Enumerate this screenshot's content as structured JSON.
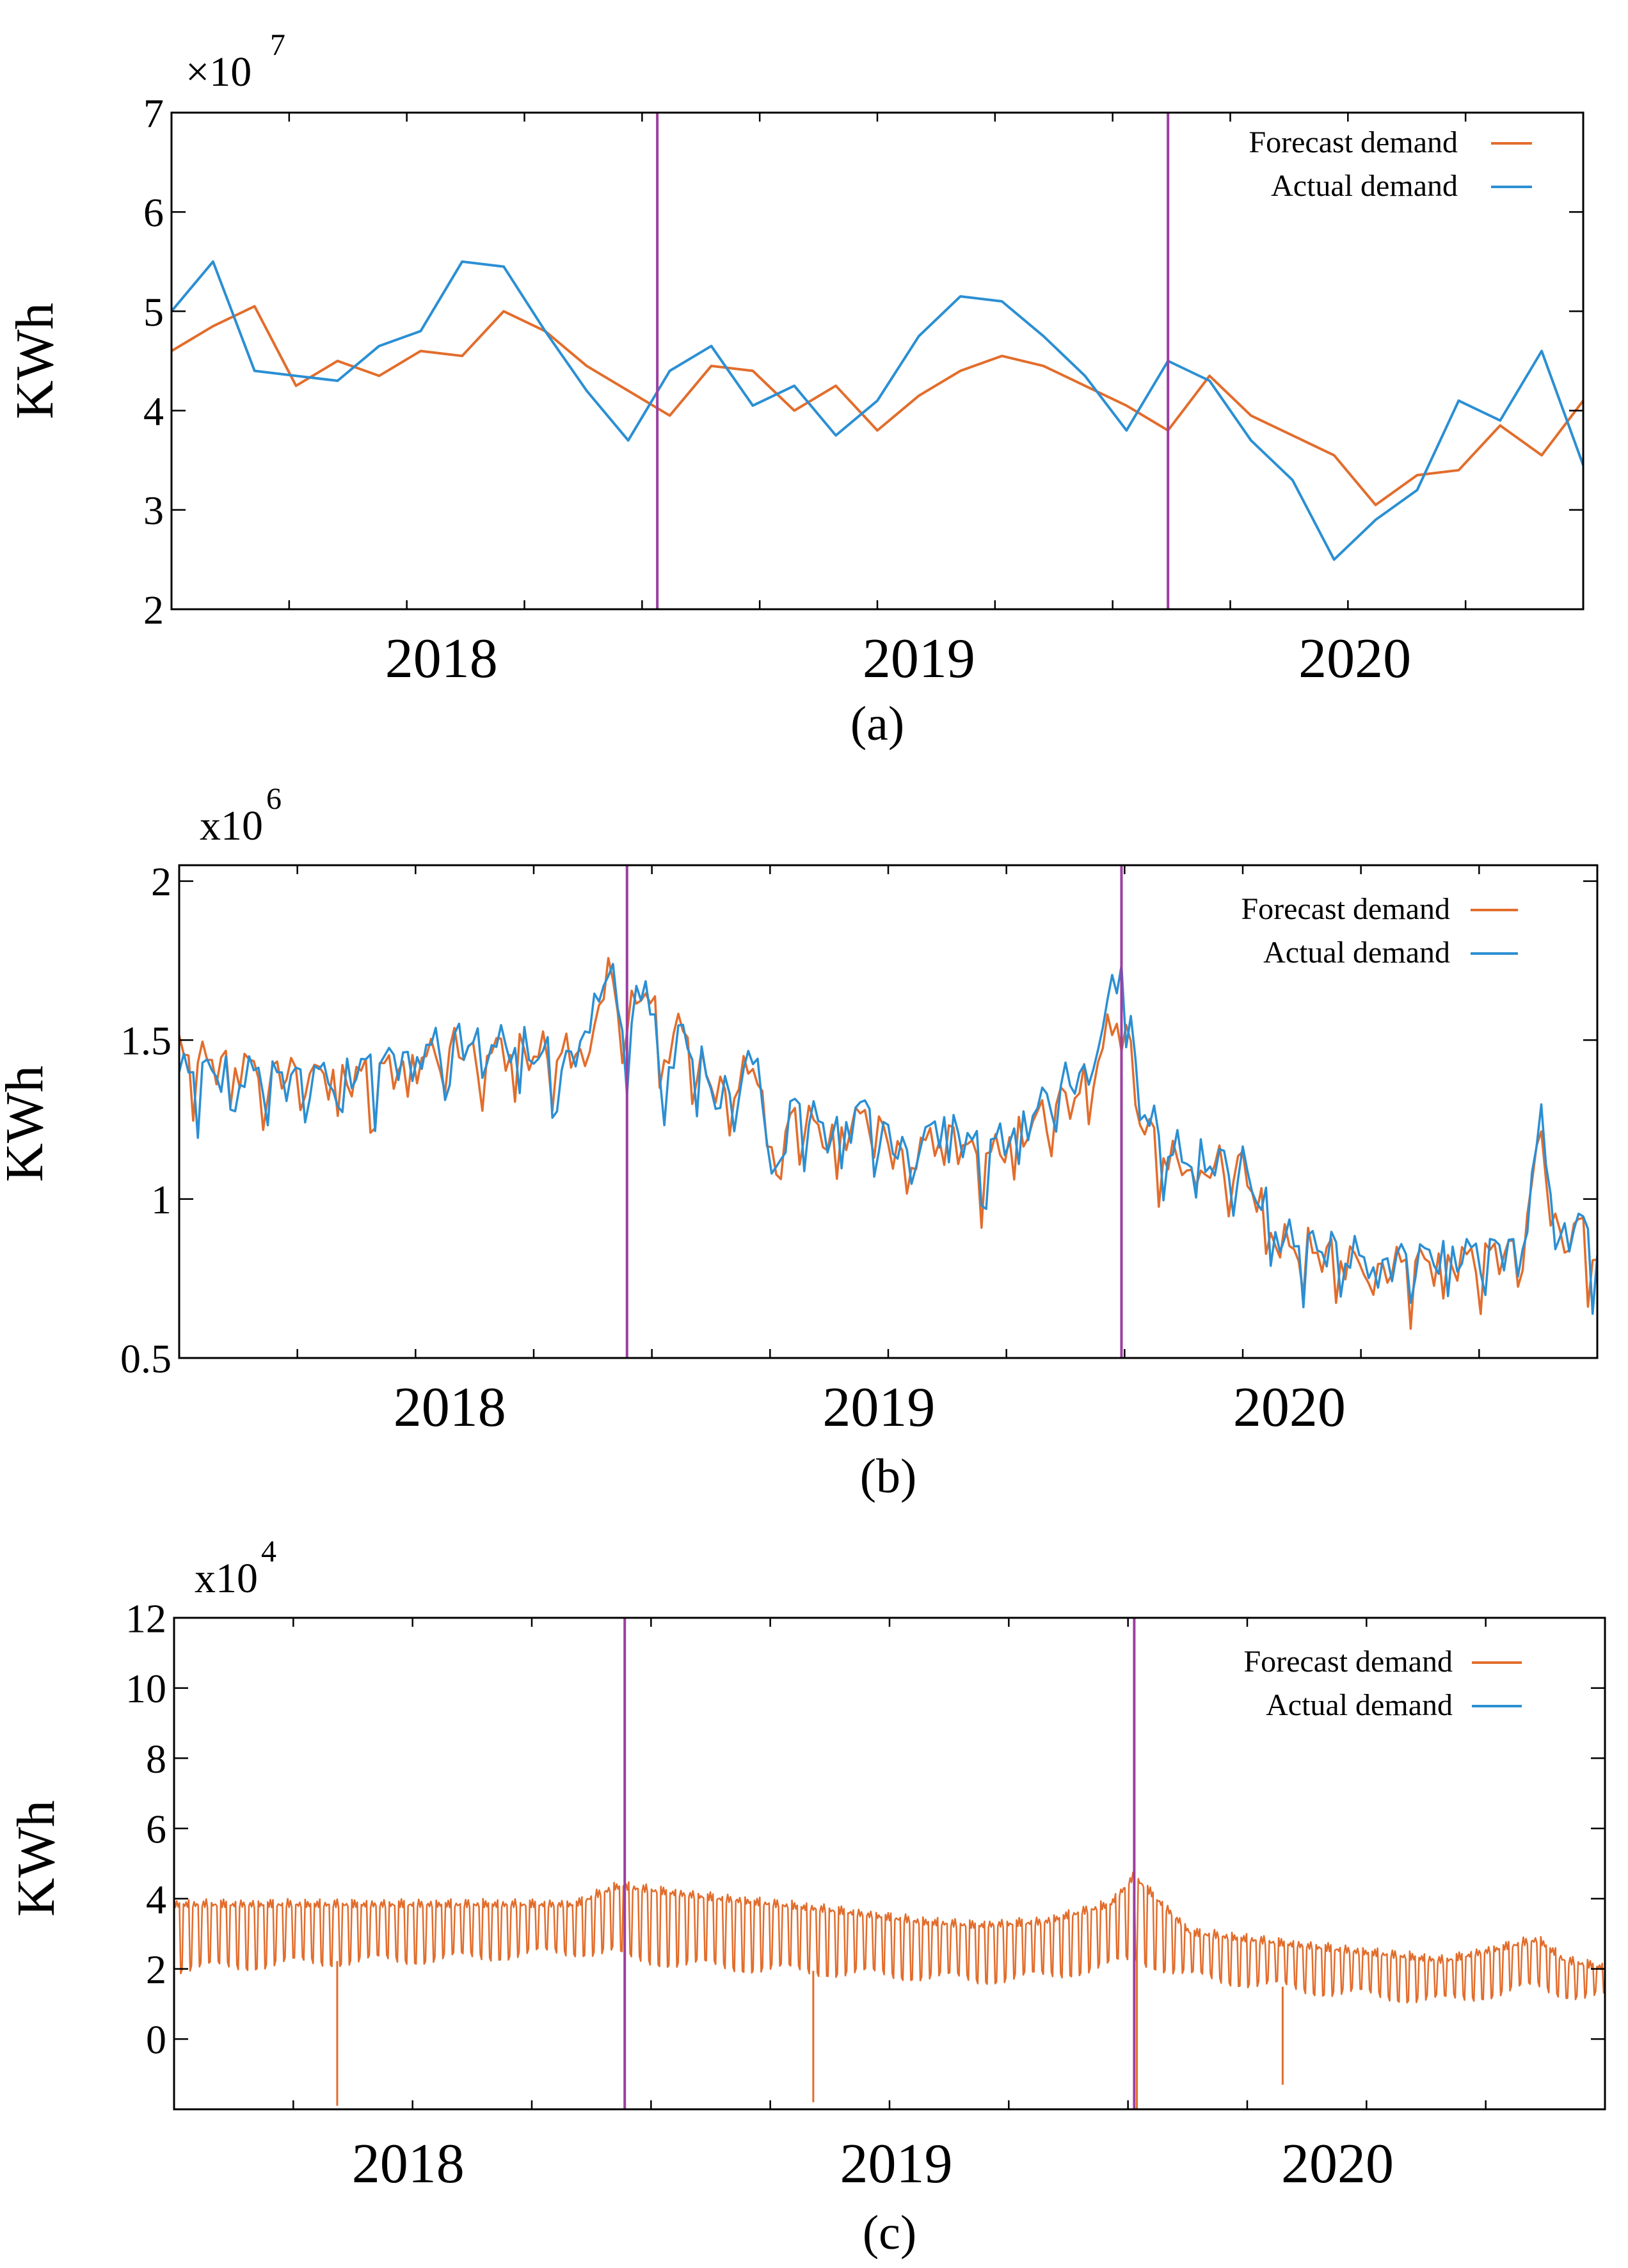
{
  "figure": {
    "panels": [
      {
        "label": "(a)"
      },
      {
        "label": "(b)"
      },
      {
        "label": "(c)"
      }
    ]
  },
  "colors": {
    "forecast": "#e26d2c",
    "actual": "#2b8fd3",
    "divider": "#9b3fa0"
  },
  "chart_data": [
    {
      "type": "line",
      "panel_label": "(a)",
      "title": "",
      "xlabel": "",
      "ylabel": "KWh",
      "y_multiplier": "×10",
      "y_multiplier_exp": "7",
      "ylim": [
        2,
        7
      ],
      "yticks": [
        2,
        3,
        4,
        5,
        6,
        7
      ],
      "ytick_labels": [
        "2",
        "3",
        "4",
        "5",
        "6",
        "7"
      ],
      "xlim": [
        0,
        34
      ],
      "x_year_labels": [
        {
          "label": "2018",
          "x": 6.5
        },
        {
          "label": "2019",
          "x": 18
        },
        {
          "label": "2020",
          "x": 28.5
        }
      ],
      "dividers": [
        11.7,
        24
      ],
      "grid": false,
      "legend_position": "top-right",
      "series": [
        {
          "name": "Forecast demand",
          "color": "#e26d2c",
          "x": [
            0,
            1,
            2,
            3,
            4,
            5,
            6,
            7,
            8,
            9,
            10,
            11,
            12,
            13,
            14,
            15,
            16,
            17,
            18,
            19,
            20,
            21,
            22,
            23,
            24,
            25,
            26,
            27,
            28,
            29,
            30,
            31,
            32,
            33,
            34
          ],
          "values": [
            4.6,
            4.85,
            5.05,
            4.25,
            4.5,
            4.35,
            4.6,
            4.55,
            5.0,
            4.8,
            4.45,
            4.2,
            3.95,
            4.45,
            4.4,
            4.0,
            4.25,
            3.8,
            4.15,
            4.4,
            4.55,
            4.45,
            4.25,
            4.05,
            3.8,
            4.35,
            3.95,
            3.75,
            3.55,
            3.05,
            3.35,
            3.4,
            3.85,
            3.55,
            4.1
          ]
        },
        {
          "name": "Actual demand",
          "color": "#2b8fd3",
          "x": [
            -0.2,
            0,
            1,
            2,
            3,
            4,
            5,
            6,
            7,
            8,
            9,
            10,
            11,
            12,
            13,
            14,
            15,
            16,
            17,
            18,
            19,
            20,
            21,
            22,
            23,
            24,
            25,
            26,
            27,
            28,
            29,
            30,
            31,
            32,
            33,
            34
          ],
          "values": [
            5.45,
            5.0,
            5.5,
            4.4,
            4.35,
            4.3,
            4.65,
            4.8,
            5.5,
            5.45,
            4.8,
            4.2,
            3.7,
            4.4,
            4.65,
            4.05,
            4.25,
            3.75,
            4.1,
            4.75,
            5.15,
            5.1,
            4.75,
            4.35,
            3.8,
            4.5,
            4.3,
            3.7,
            3.3,
            2.5,
            2.9,
            3.2,
            4.1,
            3.9,
            4.6,
            3.45
          ]
        }
      ]
    },
    {
      "type": "line",
      "panel_label": "(b)",
      "title": "",
      "xlabel": "",
      "ylabel": "KWh",
      "y_multiplier": "x10",
      "y_multiplier_exp": "6",
      "ylim": [
        0.5,
        2.05
      ],
      "yticks": [
        0.5,
        1,
        1.5,
        2
      ],
      "ytick_labels": [
        "0.5",
        "1",
        "1.5",
        "2"
      ],
      "xlim": [
        0,
        152
      ],
      "x_year_labels": [
        {
          "label": "2018",
          "x": 29
        },
        {
          "label": "2019",
          "x": 75
        },
        {
          "label": "2020",
          "x": 119
        }
      ],
      "dividers": [
        48,
        101
      ],
      "grid": false,
      "legend_position": "top-right",
      "series_note": "weekly demand (values sampled from figure)",
      "series": [
        {
          "name": "Forecast demand",
          "color": "#e26d2c",
          "anchors_x": [
            0,
            6,
            12,
            18,
            24,
            30,
            36,
            42,
            44,
            46,
            48,
            50,
            52,
            54,
            58,
            62,
            64,
            66,
            70,
            74,
            76,
            78,
            82,
            86,
            90,
            94,
            96,
            98,
            101,
            103,
            106,
            110,
            114,
            118,
            120,
            124,
            128,
            132,
            136,
            140,
            144,
            146,
            148,
            150,
            152
          ],
          "anchors_y": [
            1.45,
            1.42,
            1.4,
            1.38,
            1.42,
            1.48,
            1.46,
            1.45,
            1.55,
            1.7,
            1.55,
            1.68,
            1.45,
            1.55,
            1.32,
            1.42,
            1.08,
            1.28,
            1.18,
            1.28,
            1.18,
            1.12,
            1.22,
            1.12,
            1.2,
            1.3,
            1.32,
            1.4,
            1.62,
            1.25,
            1.12,
            1.1,
            1.1,
            0.85,
            0.85,
            0.82,
            0.78,
            0.8,
            0.8,
            0.82,
            0.85,
            1.22,
            0.85,
            0.92,
            0.8
          ]
        },
        {
          "name": "Actual demand",
          "color": "#2b8fd3",
          "anchors_x": [
            0,
            6,
            12,
            18,
            24,
            30,
            36,
            42,
            44,
            46,
            48,
            50,
            52,
            54,
            58,
            62,
            64,
            66,
            70,
            74,
            76,
            78,
            82,
            86,
            90,
            94,
            96,
            98,
            101,
            103,
            106,
            110,
            114,
            118,
            120,
            124,
            128,
            132,
            136,
            140,
            144,
            146,
            148,
            150,
            152
          ],
          "anchors_y": [
            1.4,
            1.4,
            1.38,
            1.4,
            1.45,
            1.5,
            1.48,
            1.42,
            1.6,
            1.72,
            1.5,
            1.7,
            1.4,
            1.52,
            1.3,
            1.45,
            1.1,
            1.3,
            1.2,
            1.3,
            1.2,
            1.14,
            1.25,
            1.15,
            1.22,
            1.35,
            1.38,
            1.45,
            1.75,
            1.3,
            1.15,
            1.12,
            1.1,
            0.88,
            0.86,
            0.84,
            0.8,
            0.82,
            0.82,
            0.84,
            0.86,
            1.25,
            0.86,
            0.94,
            0.82
          ]
        }
      ]
    },
    {
      "type": "line",
      "panel_label": "(c)",
      "title": "",
      "xlabel": "",
      "ylabel": "KWh",
      "y_multiplier": "x10",
      "y_multiplier_exp": "4",
      "ylim": [
        -2,
        12
      ],
      "yticks": [
        0,
        2,
        4,
        6,
        8,
        10,
        12
      ],
      "ytick_labels": [
        "0",
        "2",
        "4",
        "6",
        "8",
        "10",
        "12"
      ],
      "xlim": [
        0,
        1070
      ],
      "x_year_labels": [
        {
          "label": "2018",
          "x": 175
        },
        {
          "label": "2019",
          "x": 540
        },
        {
          "label": "2020",
          "x": 870
        }
      ],
      "dividers": [
        337,
        718
      ],
      "grid": false,
      "legend_position": "top-right",
      "series_note": "daily demand; forecast overlays actual",
      "series": [
        {
          "name": "Forecast demand",
          "color": "#e26d2c",
          "envelope_x": [
            0,
            100,
            200,
            300,
            330,
            337,
            400,
            500,
            560,
            600,
            650,
            700,
            718,
            760,
            850,
            950,
            1020,
            1040,
            1070
          ],
          "envelope_high": [
            4.0,
            4.0,
            4.0,
            4.0,
            4.5,
            4.5,
            4.2,
            3.8,
            3.5,
            3.4,
            3.5,
            4.0,
            4.8,
            3.2,
            2.8,
            2.4,
            3.0,
            2.4,
            2.2
          ],
          "envelope_low": [
            2.0,
            2.2,
            2.3,
            2.5,
            2.5,
            2.3,
            2.1,
            1.9,
            1.8,
            1.7,
            1.8,
            2.1,
            2.3,
            1.8,
            1.4,
            1.1,
            1.5,
            1.3,
            1.2
          ],
          "spikes": [
            {
              "x": 122,
              "value": -1.9
            },
            {
              "x": 478,
              "value": -1.8
            },
            {
              "x": 720,
              "value": -2.0
            },
            {
              "x": 829,
              "value": -1.3
            }
          ]
        },
        {
          "name": "Actual demand",
          "color": "#2b8fd3",
          "envelope_x": [],
          "envelope_high": [],
          "envelope_low": []
        }
      ]
    }
  ]
}
